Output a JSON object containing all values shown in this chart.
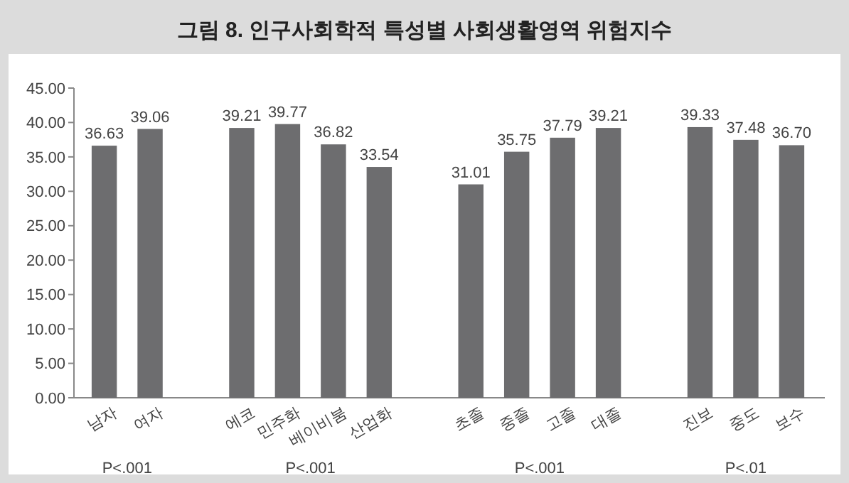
{
  "chart_data": {
    "type": "bar",
    "title": "그림 8. 인구사회학적 특성별 사회생활영역 위험지수",
    "categories": [
      "남자",
      "여자",
      null,
      "에코",
      "민주화",
      "베이비붐",
      "산업화",
      null,
      "초졸",
      "중졸",
      "고졸",
      "대졸",
      null,
      "진보",
      "중도",
      "보수"
    ],
    "values": [
      36.63,
      39.06,
      null,
      39.21,
      39.77,
      36.82,
      33.54,
      null,
      31.01,
      35.75,
      37.79,
      39.21,
      null,
      39.33,
      37.48,
      36.7
    ],
    "value_labels": [
      "36.63",
      "39.06",
      null,
      "39.21",
      "39.77",
      "36.82",
      "33.54",
      null,
      "31.01",
      "35.75",
      "37.79",
      "39.21",
      null,
      "39.33",
      "37.48",
      "36.70"
    ],
    "color": "#6d6d6f",
    "ylim": [
      0,
      45
    ],
    "yticks": [
      {
        "value": 0,
        "label": "0.00"
      },
      {
        "value": 5,
        "label": "5.00"
      },
      {
        "value": 10,
        "label": "10.00"
      },
      {
        "value": 15,
        "label": "15.00"
      },
      {
        "value": 20,
        "label": "20.00"
      },
      {
        "value": 25,
        "label": "25.00"
      },
      {
        "value": 30,
        "label": "30.00"
      },
      {
        "value": 35,
        "label": "35.00"
      },
      {
        "value": 40,
        "label": "40.00"
      },
      {
        "value": 45,
        "label": "45.00"
      }
    ],
    "annotations": [
      "P<.001",
      "P<.001",
      "P<.001",
      "P<.01"
    ]
  }
}
